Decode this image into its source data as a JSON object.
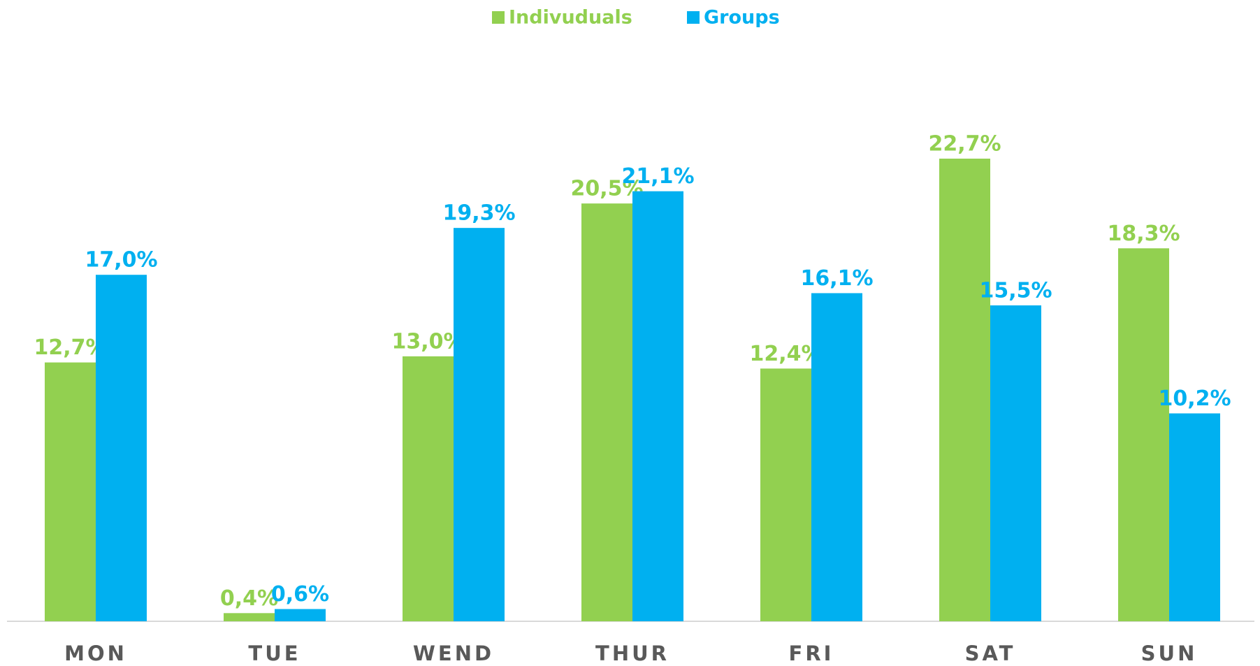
{
  "chart_data": {
    "type": "bar",
    "categories": [
      "MON",
      "TUE",
      "WEND",
      "THUR",
      "FRI",
      "SAT",
      "SUN"
    ],
    "series": [
      {
        "name": "Indivuduals",
        "color": "#92d050",
        "values": [
          12.7,
          0.4,
          13.0,
          20.5,
          12.4,
          22.7,
          18.3
        ],
        "value_labels": [
          "12,7%",
          "0,4%",
          "13,0%",
          "20,5%",
          "12,4%",
          "22,7%",
          "18,3%"
        ]
      },
      {
        "name": "Groups",
        "color": "#00b0f0",
        "values": [
          17.0,
          0.6,
          19.3,
          21.1,
          16.1,
          15.5,
          10.2
        ],
        "value_labels": [
          "17,0%",
          "0,6%",
          "19,3%",
          "21,1%",
          "16,1%",
          "15,5%",
          "10,2%"
        ]
      }
    ],
    "legend": "top"
  }
}
